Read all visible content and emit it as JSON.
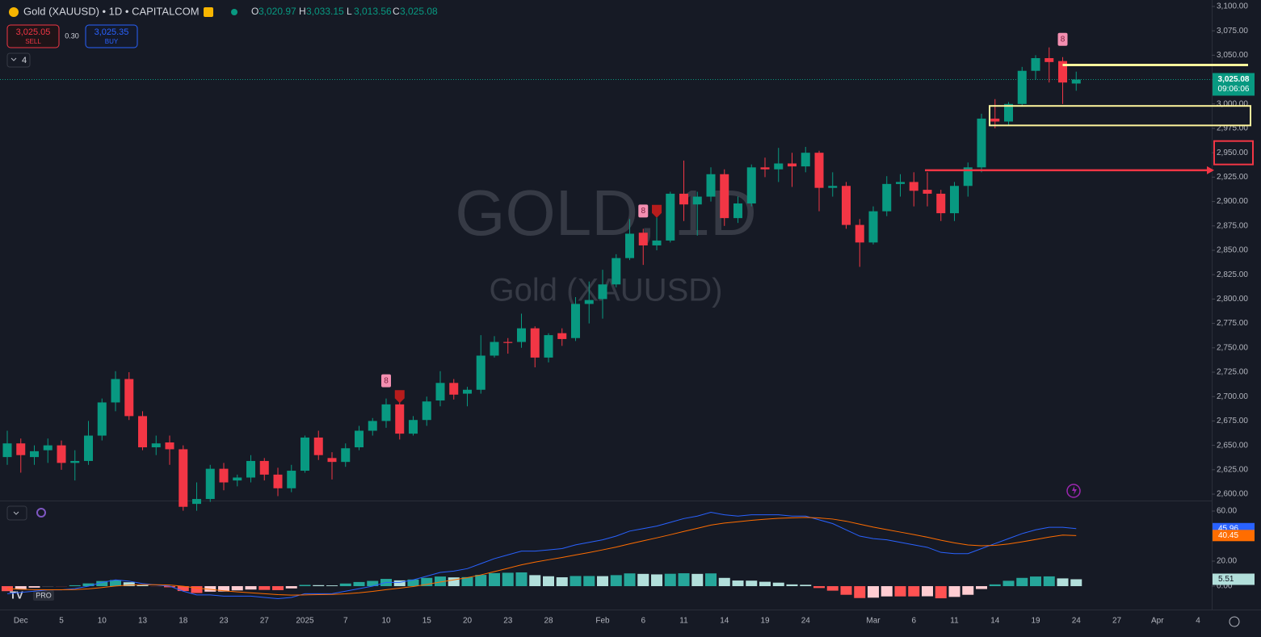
{
  "chart_data": [
    {
      "type": "candlestick",
      "title": "Gold (XAUUSD) • 1D • CAPITALCOM",
      "ohlc_letters": [
        "O",
        "H",
        "L",
        "C"
      ],
      "ohlc_labels": [
        "3,020.97",
        "3,033.15",
        "3,013.56",
        "3,025.08"
      ],
      "quote": {
        "sell": "3,025.05",
        "sell_label": "SELL",
        "spread": "0.30",
        "buy": "3,025.35",
        "buy_label": "BUY"
      },
      "indicators_count": 4,
      "watermark": [
        "GOLD, 1D",
        "Gold (XAUUSD)"
      ],
      "last_price_label": "3,025.08",
      "countdown": "09:06:06",
      "logo": "PRO",
      "up_color": "#089981",
      "down_color": "#f23645",
      "categories": [
        null,
        "Dec",
        null,
        null,
        "5",
        null,
        null,
        "10",
        null,
        null,
        "13",
        null,
        null,
        "18",
        null,
        null,
        "23",
        null,
        null,
        "27",
        null,
        null,
        "2025",
        null,
        null,
        "7",
        null,
        null,
        "10",
        null,
        null,
        "15",
        null,
        null,
        "20",
        null,
        null,
        "23",
        null,
        null,
        "28",
        null,
        null,
        null,
        "Feb",
        null,
        null,
        "6",
        null,
        null,
        "11",
        null,
        null,
        "14",
        null,
        null,
        "19",
        null,
        null,
        "24",
        null,
        null,
        null,
        null,
        "Mar",
        null,
        null,
        "6",
        null,
        null,
        "11",
        null,
        null,
        "14",
        null,
        null,
        "19",
        null,
        null,
        "24",
        null,
        null,
        "27",
        null,
        null,
        "Apr",
        null,
        null,
        "4"
      ],
      "open": [
        2638,
        2652,
        2638,
        2645,
        2650,
        2632,
        2634,
        2660,
        2694,
        2718,
        2680,
        2648,
        2653,
        2646,
        2590,
        2595,
        2626,
        2614,
        2617,
        2634,
        2620,
        2606,
        2624,
        2658,
        2637,
        2633,
        2648,
        2665,
        2675,
        2692,
        2662,
        2676,
        2696,
        2714,
        2703,
        2707,
        2742,
        2756,
        2756,
        2770,
        2740,
        2765,
        2760,
        2795,
        2800,
        2815,
        2842,
        2868,
        2855,
        2860,
        2908,
        2897,
        2905,
        2928,
        2883,
        2898,
        2935,
        2933,
        2939,
        2936,
        2950,
        2914,
        2916,
        2876,
        2858,
        2890,
        2918,
        2920,
        2912,
        2908,
        2888,
        2916,
        2935,
        2985,
        2982,
        3000,
        3034,
        3047,
        3044,
        3020.97,
        null,
        null,
        null,
        null,
        null,
        null,
        null,
        null,
        null
      ],
      "high": [
        2665,
        2657,
        2650,
        2657,
        2655,
        2645,
        2675,
        2698,
        2726,
        2725,
        2685,
        2660,
        2660,
        2650,
        2612,
        2630,
        2632,
        2620,
        2640,
        2637,
        2627,
        2630,
        2660,
        2665,
        2643,
        2652,
        2670,
        2678,
        2698,
        2695,
        2680,
        2700,
        2726,
        2718,
        2710,
        2763,
        2762,
        2760,
        2785,
        2772,
        2765,
        2770,
        2802,
        2818,
        2830,
        2846,
        2882,
        2872,
        2885,
        2910,
        2942,
        2910,
        2935,
        2933,
        2905,
        2938,
        2945,
        2955,
        2950,
        2956,
        2952,
        2930,
        2920,
        2882,
        2895,
        2926,
        2928,
        2930,
        2930,
        2912,
        2920,
        2940,
        2990,
        3005,
        3002,
        3038,
        3050,
        3058,
        3048,
        3033.15,
        null,
        null,
        null,
        null,
        null,
        null,
        null,
        null,
        null
      ],
      "low": [
        2630,
        2622,
        2630,
        2632,
        2625,
        2614,
        2630,
        2655,
        2685,
        2676,
        2645,
        2640,
        2630,
        2583,
        2583,
        2592,
        2604,
        2608,
        2612,
        2614,
        2598,
        2602,
        2622,
        2635,
        2615,
        2628,
        2645,
        2660,
        2668,
        2656,
        2660,
        2670,
        2690,
        2697,
        2690,
        2703,
        2740,
        2744,
        2750,
        2730,
        2735,
        2752,
        2757,
        2775,
        2780,
        2812,
        2840,
        2835,
        2850,
        2858,
        2880,
        2865,
        2900,
        2875,
        2878,
        2895,
        2925,
        2920,
        2915,
        2930,
        2890,
        2905,
        2872,
        2833,
        2856,
        2885,
        2905,
        2895,
        2895,
        2880,
        2880,
        2905,
        2930,
        2975,
        2978,
        2998,
        3025,
        3022,
        3000,
        3013.56,
        null,
        null,
        null,
        null,
        null,
        null,
        null,
        null,
        null
      ],
      "close": [
        2652,
        2640,
        2644,
        2650,
        2632,
        2634,
        2660,
        2694,
        2718,
        2680,
        2648,
        2652,
        2646,
        2587,
        2595,
        2626,
        2612,
        2617,
        2634,
        2620,
        2606,
        2624,
        2658,
        2640,
        2633,
        2647,
        2665,
        2675,
        2692,
        2662,
        2676,
        2695,
        2714,
        2702,
        2707,
        2742,
        2756,
        2755,
        2770,
        2740,
        2763,
        2759,
        2795,
        2799,
        2815,
        2842,
        2867,
        2855,
        2860,
        2908,
        2897,
        2905,
        2928,
        2883,
        2898,
        2935,
        2933,
        2939,
        2936,
        2950,
        2914,
        2916,
        2876,
        2858,
        2890,
        2918,
        2920,
        2911,
        2908,
        2888,
        2916,
        2935,
        2985,
        2982,
        3000,
        3034,
        3047,
        3043,
        3022,
        3025.08,
        null,
        null,
        null,
        null,
        null,
        null,
        null,
        null,
        null
      ],
      "td_counts": [
        {
          "index": 28,
          "label": "8"
        },
        {
          "index": 47,
          "label": "8"
        },
        {
          "index": 78,
          "label": "8"
        }
      ],
      "arrows": [
        29,
        48
      ],
      "drawings": {
        "line": 3040,
        "zone": [
          2978,
          2998
        ],
        "arrow": 2932,
        "highlight": [
          2938,
          2962
        ]
      },
      "ylim": [
        2593.4,
        3106.6
      ],
      "yticks": [
        {
          "value": 3100,
          "label": "3,100.00"
        },
        {
          "value": 3075,
          "label": "3,075.00"
        },
        {
          "value": 3050,
          "label": "3,050.00"
        },
        {
          "value": 3025,
          "label": "3,025.00"
        },
        {
          "value": 3000,
          "label": "3,000.00"
        },
        {
          "value": 2975,
          "label": "2,975.00"
        },
        {
          "value": 2950,
          "label": "2,950.00"
        },
        {
          "value": 2925,
          "label": "2,925.00"
        },
        {
          "value": 2900,
          "label": "2,900.00"
        },
        {
          "value": 2875,
          "label": "2,875.00"
        },
        {
          "value": 2850,
          "label": "2,850.00"
        },
        {
          "value": 2825,
          "label": "2,825.00"
        },
        {
          "value": 2800,
          "label": "2,800.00"
        },
        {
          "value": 2775,
          "label": "2,775.00"
        },
        {
          "value": 2750,
          "label": "2,750.00"
        },
        {
          "value": 2725,
          "label": "2,725.00"
        },
        {
          "value": 2700,
          "label": "2,700.00"
        },
        {
          "value": 2675,
          "label": "2,675.00"
        },
        {
          "value": 2650,
          "label": "2,650.00"
        },
        {
          "value": 2625,
          "label": "2,625.00"
        },
        {
          "value": 2600,
          "label": "2,600.00"
        }
      ],
      "grid": false
    },
    {
      "type": "macd",
      "series": [
        {
          "color": "#2962ff",
          "values": [
            -6,
            -5,
            -4,
            -3,
            -3,
            -2,
            0,
            3,
            5,
            4,
            2,
            1,
            0,
            -4,
            -7,
            -7,
            -8,
            -8,
            -8,
            -9,
            -10,
            -9,
            -6,
            -6,
            -6,
            -4,
            -2,
            0,
            3,
            3,
            5,
            8,
            11,
            12,
            14,
            18,
            22,
            25,
            28,
            28,
            29,
            30,
            33,
            35,
            37,
            40,
            44,
            46,
            48,
            51,
            54,
            56,
            59,
            57,
            56,
            57,
            57,
            57,
            56,
            56,
            53,
            50,
            45,
            40,
            38,
            37,
            35,
            33,
            31,
            27,
            26,
            26,
            30,
            34,
            38,
            42,
            45,
            47,
            47,
            45.96
          ]
        },
        {
          "color": "#ff6d00",
          "values": [
            -2,
            -2.5,
            -2.8,
            -2.9,
            -2.9,
            -2.7,
            -2.2,
            -1.1,
            0.1,
            0.9,
            1.1,
            1.1,
            0.9,
            -0.1,
            -1.5,
            -2.6,
            -3.7,
            -4.6,
            -5.3,
            -6,
            -6.8,
            -7.2,
            -7,
            -6.8,
            -6.6,
            -6.1,
            -5.3,
            -4.2,
            -2.8,
            -1.6,
            -0.3,
            1.4,
            3.3,
            5,
            6.8,
            9,
            11.6,
            14.3,
            17,
            19.2,
            21.1,
            22.9,
            24.9,
            26.9,
            29,
            31.2,
            33.8,
            36.2,
            38.6,
            41.1,
            43.7,
            46.2,
            48.8,
            50.4,
            51.5,
            52.6,
            53.5,
            54.2,
            54.6,
            54.9,
            54.5,
            53.6,
            51.9,
            49.5,
            47.2,
            45.2,
            43.2,
            41.2,
            39.1,
            36.7,
            34.6,
            32.9,
            32.3,
            32.6,
            33.7,
            35.4,
            37.3,
            39.2,
            40.8,
            40.45
          ]
        }
      ],
      "histogram": {
        "values": [
          -4,
          -2.5,
          -1.2,
          -0.1,
          -0.1,
          0.7,
          2.2,
          4.1,
          4.9,
          3.1,
          0.9,
          -0.1,
          -0.9,
          -3.9,
          -5.5,
          -4.4,
          -4.3,
          -3.4,
          -2.7,
          -3,
          -3.2,
          -1.8,
          1,
          0.8,
          0.6,
          2.1,
          3.3,
          4.2,
          5.8,
          4.6,
          5.3,
          6.6,
          7.7,
          7,
          7.2,
          9,
          10.4,
          10.7,
          11,
          8.8,
          7.9,
          7.1,
          8.1,
          8.1,
          8,
          8.8,
          10.2,
          9.8,
          9.4,
          9.9,
          10.3,
          9.8,
          10.2,
          6.6,
          4.5,
          4.4,
          3.5,
          2.8,
          1.4,
          1.1,
          -1.5,
          -3.6,
          -6.9,
          -9.5,
          -9.2,
          -8.2,
          -8.2,
          -8.2,
          -8.1,
          -9.7,
          -8.6,
          -6.9,
          -2.3,
          1.4,
          4.3,
          6.6,
          7.7,
          7.8,
          6.2,
          5.51
        ],
        "colors": {
          "up_grow": "#26a69a",
          "up_fall": "#b2dfdb",
          "down_grow": "#ff5252",
          "down_fall": "#ffcdd2"
        }
      },
      "ylim": [
        -18.7,
        68.4
      ],
      "yticks": [
        {
          "value": 60,
          "label": "60.00"
        },
        {
          "value": 20,
          "label": "20.00"
        },
        {
          "value": 0,
          "label": "0.00"
        }
      ]
    }
  ]
}
